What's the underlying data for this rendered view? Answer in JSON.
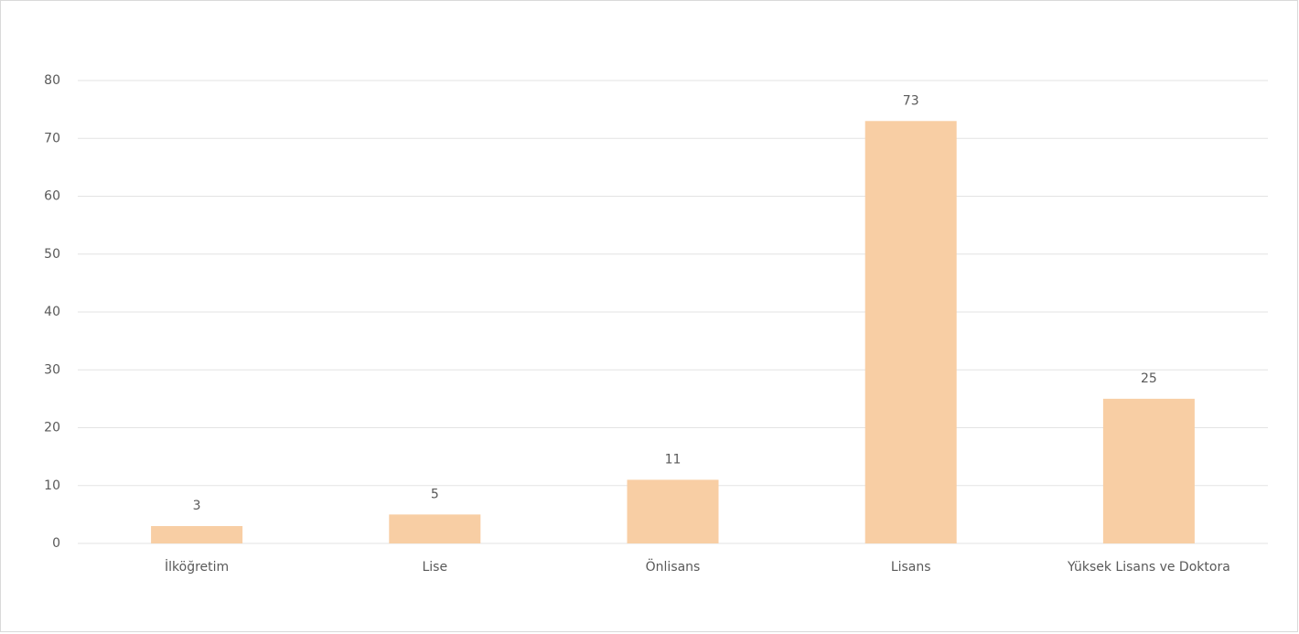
{
  "chart_data": {
    "type": "bar",
    "categories": [
      "İlköğretim",
      "Lise",
      "Önlisans",
      "Lisans",
      "Yüksek Lisans ve Doktora"
    ],
    "values": [
      3,
      5,
      11,
      73,
      25
    ],
    "color": "#f8cea4",
    "ylim": [
      0,
      80
    ],
    "yticks": [
      0,
      10,
      20,
      30,
      40,
      50,
      60,
      70,
      80
    ],
    "grid": true
  }
}
